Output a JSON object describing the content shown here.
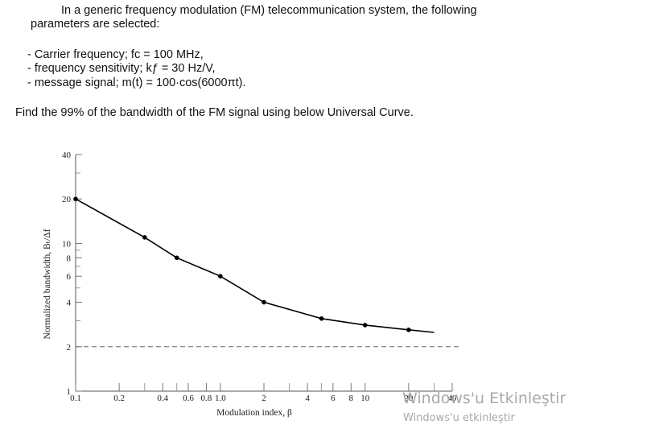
{
  "problem": {
    "intro_line1": "In a generic frequency modulation (FM) telecommunication system, the following",
    "intro_line2": "parameters are selected:",
    "param1": "- Carrier frequency; fᴄ = 100 MHz,",
    "param2": "- frequency sensitivity; kƒ = 30 Hz/V,",
    "param3": "- message signal; m(t) = 100·cos(6000πt).",
    "question": "Find the 99% of the bandwidth of the FM signal using below Universal Curve."
  },
  "chart_data": {
    "type": "line",
    "xscale": "log",
    "yscale": "log",
    "xlabel": "Modulation index, β",
    "ylabel": "Normalized bandwidth, Bₜ/Δf",
    "xlim": [
      0.1,
      40
    ],
    "ylim": [
      1,
      40
    ],
    "x_tick_labels": [
      "0.1",
      "0.2",
      "0.4",
      "0.6",
      "0.8",
      "1.0",
      "2",
      "4",
      "6",
      "8",
      "10",
      "20",
      "40"
    ],
    "x_tick_values": [
      0.1,
      0.2,
      0.4,
      0.6,
      0.8,
      1.0,
      2,
      4,
      6,
      8,
      10,
      20,
      40
    ],
    "y_tick_labels": [
      "1",
      "2",
      "4",
      "6",
      "8",
      "10",
      "20",
      "40"
    ],
    "y_tick_values": [
      1,
      2,
      4,
      6,
      8,
      10,
      20,
      40
    ],
    "series": [
      {
        "x": [
          0.1,
          0.3,
          0.5,
          1.0,
          2.0,
          5.0,
          10.0,
          20.0,
          30.0
        ],
        "y": [
          20,
          11,
          8,
          6,
          4,
          3.1,
          2.8,
          2.6,
          2.5
        ],
        "marked_points_x": [
          0.1,
          0.3,
          0.5,
          1.0,
          2.0,
          5.0,
          10.0,
          20.0
        ]
      }
    ],
    "asymptote_y": 2,
    "asymptote_style": "dashed",
    "color": "#000000"
  },
  "watermark": {
    "line1": "Windows'u Etkinleştir",
    "line2": "Windows'u etkinleştir"
  }
}
